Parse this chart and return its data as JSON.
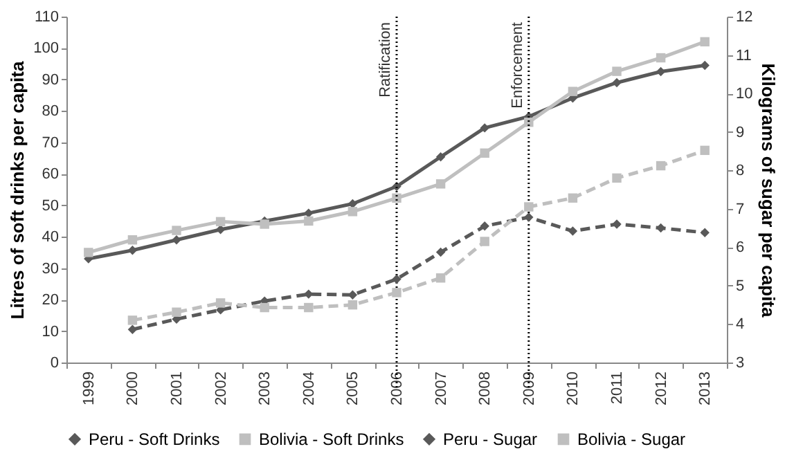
{
  "chart_data": {
    "type": "line",
    "ylabel": "Litres of soft drinks per capita",
    "y2label": "Kilograms of sugar per capita",
    "categories": [
      "1999",
      "2000",
      "2001",
      "2002",
      "2003",
      "2004",
      "2005",
      "2006",
      "2007",
      "2008",
      "2009",
      "2010",
      "2011",
      "2012",
      "2013"
    ],
    "ylim": [
      0,
      110
    ],
    "yticks": [
      0,
      10,
      20,
      30,
      40,
      50,
      60,
      70,
      80,
      90,
      100,
      110
    ],
    "y2lim": [
      3,
      12
    ],
    "y2ticks": [
      3,
      4,
      5,
      6,
      7,
      8,
      9,
      10,
      11,
      12
    ],
    "grid": false,
    "legend": "bottom",
    "series": [
      {
        "name": "Peru - Soft Drinks",
        "color": "#595959",
        "marker": "diamond",
        "line_style": "solid",
        "values": [
          33,
          35.7,
          39,
          42.3,
          45,
          47.5,
          50.5,
          56,
          65.4,
          74.6,
          78.2,
          84.1,
          89,
          92.5,
          94.5
        ]
      },
      {
        "name": "Bolivia - Soft Drinks",
        "color": "#bfbfbf",
        "marker": "square",
        "line_style": "solid",
        "values": [
          35,
          39,
          42,
          44.8,
          44,
          45,
          48,
          52.3,
          56.8,
          66.6,
          76.4,
          86.2,
          92.6,
          96.9,
          102
        ]
      },
      {
        "name": "Peru - Sugar",
        "color": "#595959",
        "marker": "diamond",
        "line_style": "dashed",
        "axis": "y2",
        "values": [
          null,
          3.86,
          4.13,
          4.37,
          4.6,
          4.78,
          4.76,
          5.17,
          5.87,
          6.55,
          6.78,
          6.42,
          6.6,
          6.5,
          6.38
        ]
      },
      {
        "name": "Bolivia - Sugar",
        "color": "#bfbfbf",
        "marker": "square",
        "line_style": "dashed",
        "axis": "y2",
        "values": [
          null,
          4.1,
          4.31,
          4.55,
          4.43,
          4.43,
          4.5,
          4.82,
          5.2,
          6.15,
          7.05,
          7.28,
          7.8,
          8.12,
          8.52
        ]
      }
    ],
    "ref_lines": [
      {
        "axis": "x",
        "value": "2006",
        "label": "Ratification",
        "color": "#000000",
        "line_style": "dotted"
      },
      {
        "axis": "x",
        "value": "2009",
        "label": "Enforcement",
        "color": "#000000",
        "line_style": "dotted"
      }
    ]
  }
}
